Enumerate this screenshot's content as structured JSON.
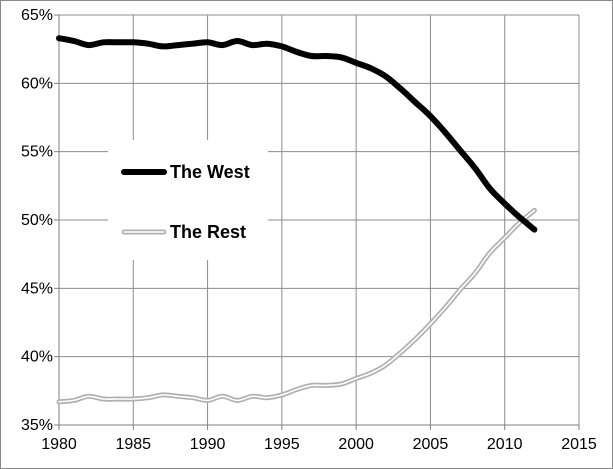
{
  "chart_data": {
    "type": "line",
    "title": "",
    "xlabel": "",
    "ylabel": "",
    "xlim": [
      1980,
      2015
    ],
    "ylim": [
      35,
      65
    ],
    "x_ticks": [
      1980,
      1985,
      1990,
      1995,
      2000,
      2005,
      2010,
      2015
    ],
    "x_tick_labels": [
      "1980",
      "1985",
      "1990",
      "1995",
      "2000",
      "2005",
      "2010",
      "2015"
    ],
    "y_ticks": [
      35,
      40,
      45,
      50,
      55,
      60,
      65
    ],
    "y_tick_labels": [
      "35%",
      "40%",
      "45%",
      "50%",
      "55%",
      "60%",
      "65%"
    ],
    "grid": "vertical and horizontal",
    "legend_position": "left-center",
    "x": [
      1980,
      1981,
      1982,
      1983,
      1984,
      1985,
      1986,
      1987,
      1988,
      1989,
      1990,
      1991,
      1992,
      1993,
      1994,
      1995,
      1996,
      1997,
      1998,
      1999,
      2000,
      2001,
      2002,
      2003,
      2004,
      2005,
      2006,
      2007,
      2008,
      2009,
      2010,
      2011,
      2012
    ],
    "series": [
      {
        "name": "The West",
        "color": "#000000",
        "style": "solid-thick",
        "values": [
          63.3,
          63.1,
          62.8,
          63.0,
          63.0,
          63.0,
          62.9,
          62.7,
          62.8,
          62.9,
          63.0,
          62.8,
          63.1,
          62.8,
          62.9,
          62.7,
          62.3,
          62.0,
          62.0,
          61.9,
          61.5,
          61.1,
          60.5,
          59.6,
          58.6,
          57.6,
          56.4,
          55.1,
          53.8,
          52.3,
          51.2,
          50.2,
          49.3
        ]
      },
      {
        "name": "The Rest",
        "color": "#b0b0b0",
        "style": "hollow-double",
        "values": [
          36.7,
          36.8,
          37.1,
          36.9,
          36.9,
          36.9,
          37.0,
          37.2,
          37.1,
          37.0,
          36.8,
          37.1,
          36.8,
          37.1,
          37.0,
          37.2,
          37.6,
          37.9,
          37.9,
          38.0,
          38.4,
          38.8,
          39.4,
          40.3,
          41.3,
          42.4,
          43.6,
          44.9,
          46.1,
          47.6,
          48.7,
          49.8,
          50.7
        ]
      }
    ]
  }
}
